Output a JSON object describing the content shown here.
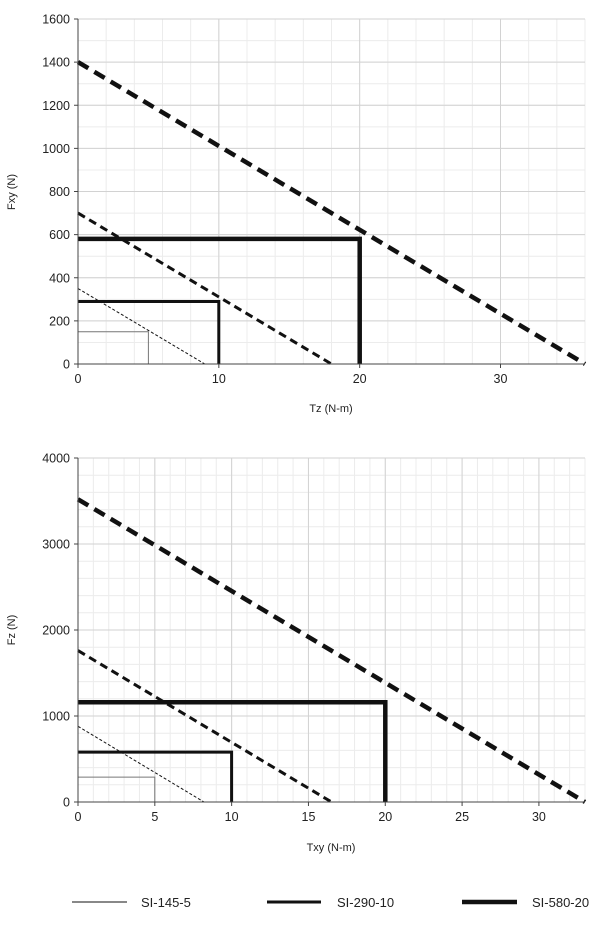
{
  "chart_data": [
    {
      "type": "line",
      "title": "",
      "xlabel": "Tz (N-m)",
      "ylabel": "Fxy (N)",
      "xlim": [
        0,
        36
      ],
      "ylim": [
        0,
        1600
      ],
      "x_ticks": [
        "0",
        "10",
        "20",
        "30"
      ],
      "y_ticks": [
        "0",
        "200",
        "400",
        "600",
        "800",
        "1000",
        "1200",
        "1400",
        "1600"
      ],
      "grid": true,
      "series": [
        {
          "name": "SI-145-5",
          "style": "dashed",
          "points": [
            [
              0,
              350
            ],
            [
              9,
              0
            ]
          ]
        },
        {
          "name": "SI-145-5",
          "style": "solid",
          "points": [
            [
              0,
              150
            ],
            [
              5,
              150
            ],
            [
              5,
              0
            ]
          ]
        },
        {
          "name": "SI-290-10",
          "style": "dashed",
          "points": [
            [
              0,
              700
            ],
            [
              18,
              0
            ]
          ]
        },
        {
          "name": "SI-290-10",
          "style": "solid",
          "points": [
            [
              0,
              290
            ],
            [
              10,
              290
            ],
            [
              10,
              0
            ]
          ]
        },
        {
          "name": "SI-580-20",
          "style": "dashed",
          "points": [
            [
              0,
              1400
            ],
            [
              36,
              0
            ]
          ]
        },
        {
          "name": "SI-580-20",
          "style": "solid",
          "points": [
            [
              0,
              580
            ],
            [
              20,
              580
            ],
            [
              20,
              0
            ]
          ]
        }
      ]
    },
    {
      "type": "line",
      "title": "",
      "xlabel": "Txy (N-m)",
      "ylabel": "Fz (N)",
      "xlim": [
        0,
        33
      ],
      "ylim": [
        0,
        4000
      ],
      "x_ticks": [
        "0",
        "5",
        "10",
        "15",
        "20",
        "25",
        "30"
      ],
      "y_ticks": [
        "0",
        "1000",
        "2000",
        "3000",
        "4000"
      ],
      "grid": true,
      "series": [
        {
          "name": "SI-145-5",
          "style": "dashed",
          "points": [
            [
              0,
              880
            ],
            [
              8.2,
              0
            ]
          ]
        },
        {
          "name": "SI-145-5",
          "style": "solid",
          "points": [
            [
              0,
              290
            ],
            [
              5,
              290
            ],
            [
              5,
              0
            ]
          ]
        },
        {
          "name": "SI-290-10",
          "style": "dashed",
          "points": [
            [
              0,
              1760
            ],
            [
              16.5,
              0
            ]
          ]
        },
        {
          "name": "SI-290-10",
          "style": "solid",
          "points": [
            [
              0,
              580
            ],
            [
              10,
              580
            ],
            [
              10,
              0
            ]
          ]
        },
        {
          "name": "SI-580-20",
          "style": "dashed",
          "points": [
            [
              0,
              3520
            ],
            [
              33,
              0
            ]
          ]
        },
        {
          "name": "SI-580-20",
          "style": "solid",
          "points": [
            [
              0,
              1160
            ],
            [
              20,
              1160
            ],
            [
              20,
              0
            ]
          ]
        }
      ]
    }
  ],
  "legend": {
    "placement": "bottom",
    "entries": [
      {
        "label": "SI-145-5",
        "color": "#000000"
      },
      {
        "label": "SI-290-10",
        "color": "#000000"
      },
      {
        "label": "SI-580-20",
        "color": "#000000"
      }
    ]
  },
  "colors": {
    "grid_minor": "#ececec",
    "grid_major": "#d2d2d2",
    "axis": "#444444",
    "line": "#111111",
    "thin_line": "#777777"
  }
}
